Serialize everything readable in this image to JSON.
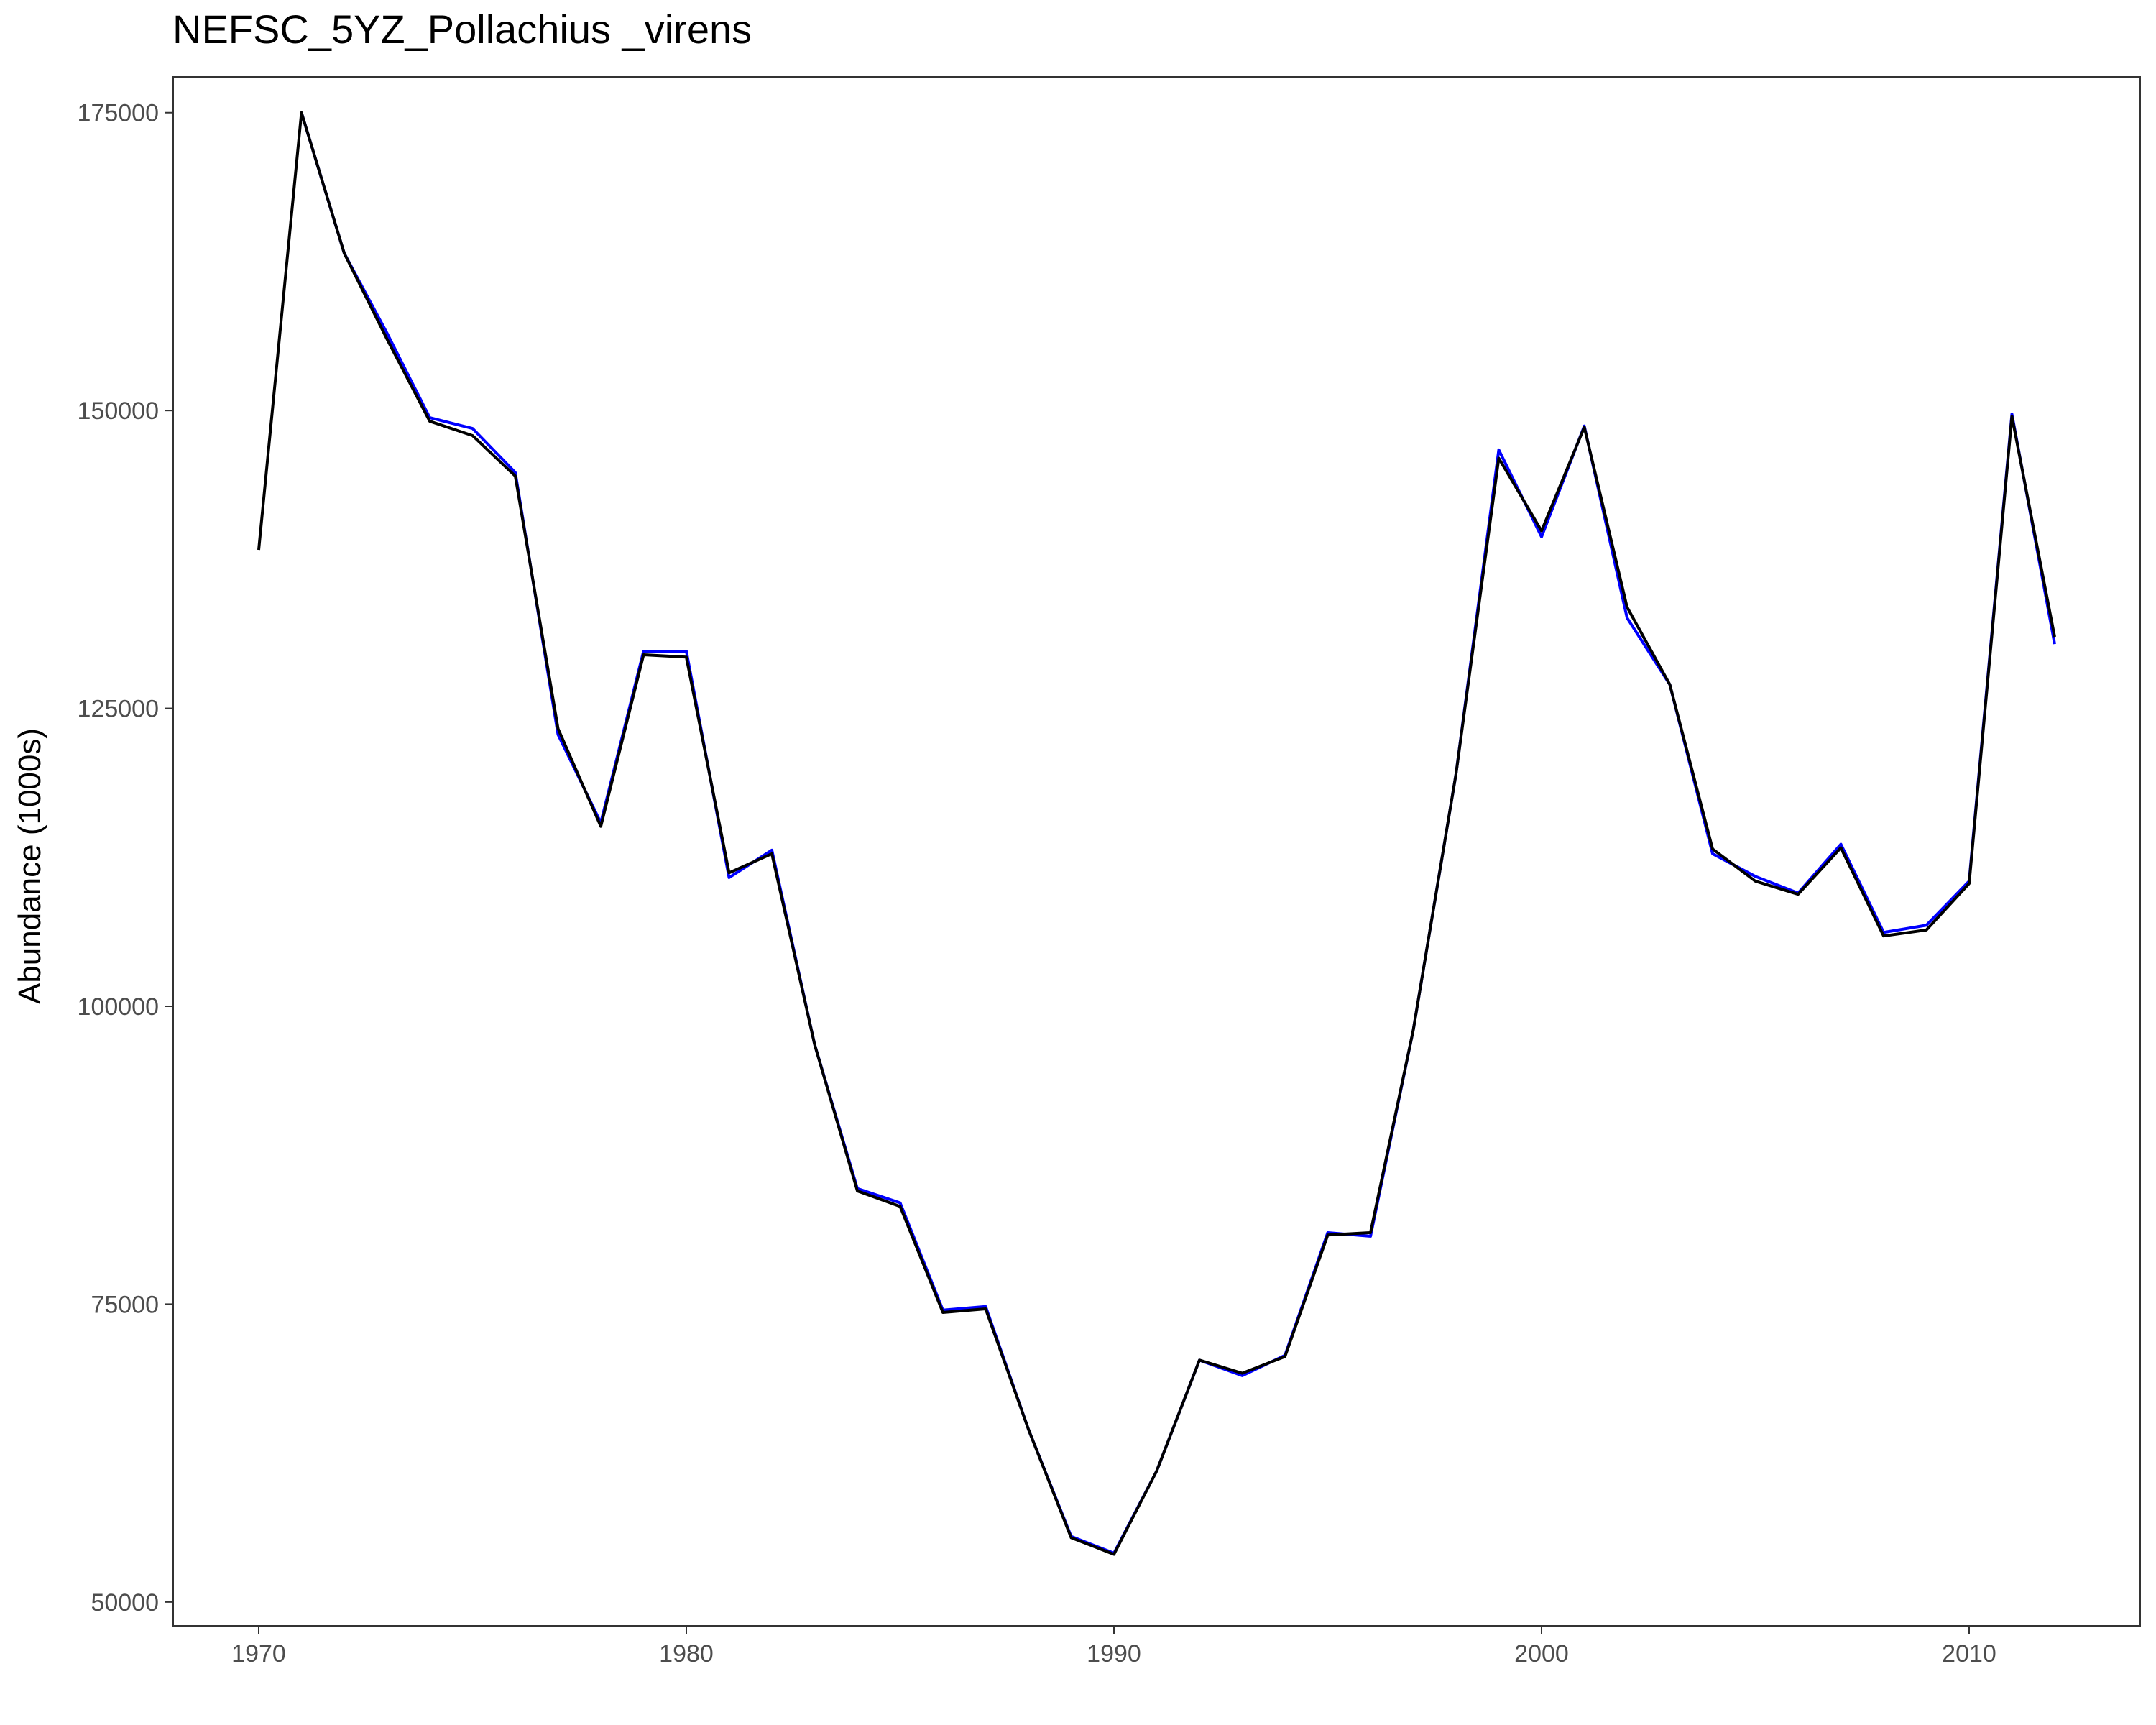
{
  "chart_data": {
    "type": "line",
    "title": "NEFSC_5YZ_Pollachius _virens",
    "xlabel": "",
    "ylabel": "Abundance (1000s)",
    "xlim": [
      1968,
      2014
    ],
    "ylim": [
      48000,
      178000
    ],
    "x_ticks": [
      1970,
      1980,
      1990,
      2000,
      2010
    ],
    "y_ticks": [
      50000,
      75000,
      100000,
      125000,
      150000,
      175000
    ],
    "grid": false,
    "legend": "none",
    "x": [
      1970,
      1971,
      1972,
      1973,
      1974,
      1975,
      1976,
      1977,
      1978,
      1979,
      1980,
      1981,
      1982,
      1983,
      1984,
      1985,
      1986,
      1987,
      1988,
      1989,
      1990,
      1991,
      1992,
      1993,
      1994,
      1995,
      1996,
      1997,
      1998,
      1999,
      2000,
      2001,
      2002,
      2003,
      2004,
      2005,
      2006,
      2007,
      2008,
      2009,
      2010,
      2011,
      2012
    ],
    "series": [
      {
        "color": "#0000ff",
        "values": [
          null,
          175000,
          163200,
          156500,
          149400,
          148500,
          144800,
          122800,
          115400,
          129800,
          129800,
          110800,
          113100,
          96800,
          84700,
          83500,
          74500,
          74800,
          64500,
          55500,
          54100,
          61000,
          70300,
          69000,
          70700,
          81000,
          80700,
          98000,
          119500,
          146700,
          139400,
          148700,
          132600,
          127000,
          112800,
          110900,
          109500,
          113600,
          106200,
          106800,
          110500,
          149700,
          130400
        ]
      },
      {
        "color": "#000000",
        "values": [
          138300,
          175000,
          163200,
          156000,
          149100,
          147900,
          144500,
          123300,
          115100,
          129500,
          129300,
          111200,
          112800,
          96800,
          84500,
          83200,
          74300,
          74600,
          64500,
          55400,
          54000,
          61000,
          70300,
          69200,
          70600,
          80800,
          81000,
          98000,
          119500,
          146000,
          139900,
          148600,
          133500,
          127000,
          113200,
          110500,
          109400,
          113300,
          105900,
          106400,
          110300,
          149500,
          131000
        ]
      }
    ]
  }
}
